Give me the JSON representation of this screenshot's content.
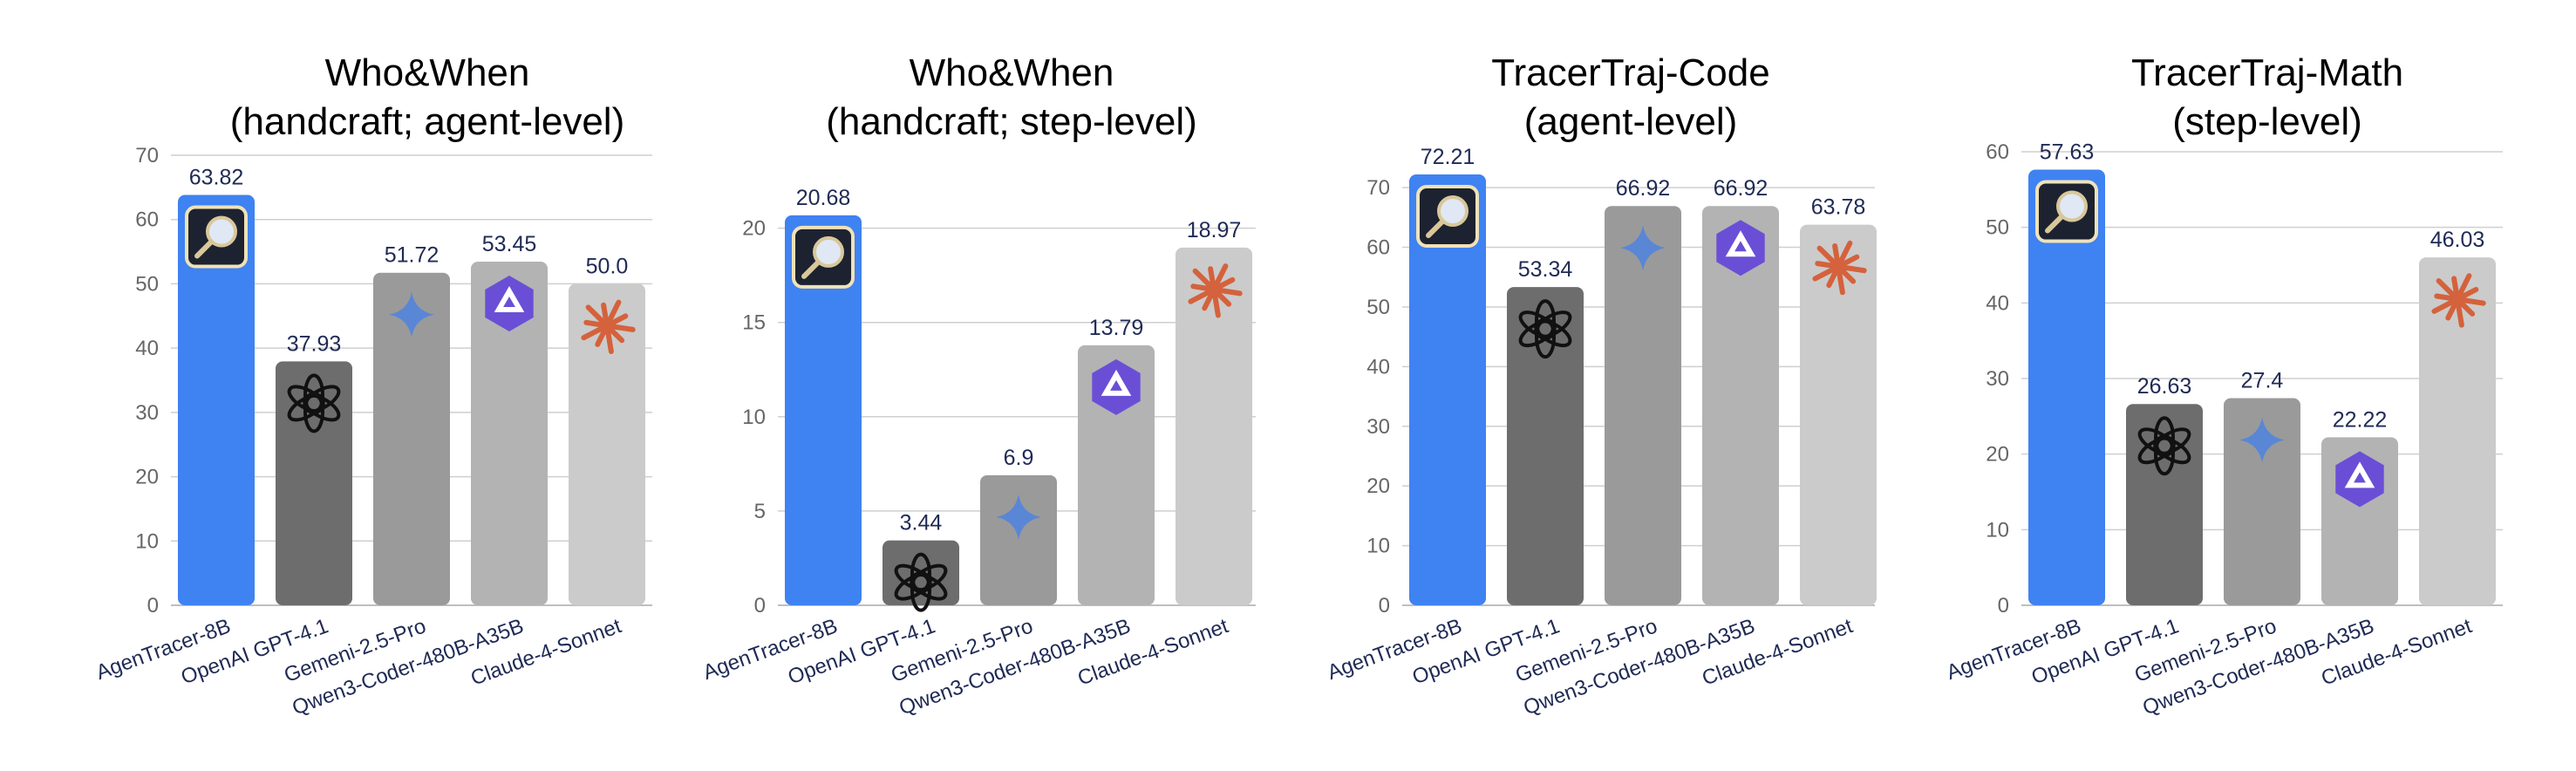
{
  "colors": {
    "bar": [
      "#3f82f1",
      "#6d6d6d",
      "#9a9a9a",
      "#b3b3b3",
      "#cbcbcb"
    ],
    "claude": "#d4623c",
    "qwen": "#6a4fd6",
    "gemini": "#5a86d6"
  },
  "icons": [
    "magnifier-icon",
    "openai-icon",
    "gemini-icon",
    "qwen-icon",
    "claude-icon"
  ],
  "chart_data": [
    {
      "type": "bar",
      "title_lines": [
        "Who&When",
        "(handcraft; agent-level)"
      ],
      "categories": [
        "AgenTracer-8B",
        "OpenAI GPT-4.1",
        "Gemeni-2.5-Pro",
        "Qwen3-Coder-480B-A35B",
        "Claude-4-Sonnet"
      ],
      "values": [
        63.82,
        37.93,
        51.72,
        53.45,
        50.0
      ],
      "value_labels": [
        "63.82",
        "37.93",
        "51.72",
        "53.45",
        "50.0"
      ],
      "ylim": [
        0,
        70
      ],
      "yticks": [
        0,
        10,
        20,
        30,
        40,
        50,
        60,
        70
      ],
      "grid": true
    },
    {
      "type": "bar",
      "title_lines": [
        "Who&When",
        "(handcraft; step-level)"
      ],
      "categories": [
        "AgenTracer-8B",
        "OpenAI GPT-4.1",
        "Gemeni-2.5-Pro",
        "Qwen3-Coder-480B-A35B",
        "Claude-4-Sonnet"
      ],
      "values": [
        20.68,
        3.44,
        6.9,
        13.79,
        18.97
      ],
      "value_labels": [
        "20.68",
        "3.44",
        "6.9",
        "13.79",
        "18.97"
      ],
      "ylim": [
        0,
        21
      ],
      "yticks": [
        0,
        5,
        10,
        15,
        20
      ],
      "grid": true
    },
    {
      "type": "bar",
      "title_lines": [
        "TracerTraj-Code",
        "(agent-level)"
      ],
      "categories": [
        "AgenTracer-8B",
        "OpenAI GPT-4.1",
        "Gemeni-2.5-Pro",
        "Qwen3-Coder-480B-A35B",
        "Claude-4-Sonnet"
      ],
      "values": [
        72.21,
        53.34,
        66.92,
        66.92,
        63.78
      ],
      "value_labels": [
        "72.21",
        "53.34",
        "66.92",
        "66.92",
        "63.78"
      ],
      "ylim": [
        0,
        72.21
      ],
      "yticks": [
        0,
        10,
        20,
        30,
        40,
        50,
        60,
        70
      ],
      "grid": true
    },
    {
      "type": "bar",
      "title_lines": [
        "TracerTraj-Math",
        "(step-level)"
      ],
      "categories": [
        "AgenTracer-8B",
        "OpenAI GPT-4.1",
        "Gemeni-2.5-Pro",
        "Qwen3-Coder-480B-A35B",
        "Claude-4-Sonnet"
      ],
      "values": [
        57.63,
        26.63,
        27.4,
        22.22,
        46.03
      ],
      "value_labels": [
        "57.63",
        "26.63",
        "27.4",
        "22.22",
        "46.03"
      ],
      "ylim": [
        0,
        60
      ],
      "yticks": [
        0,
        10,
        20,
        30,
        40,
        50,
        60
      ],
      "grid": true
    }
  ]
}
